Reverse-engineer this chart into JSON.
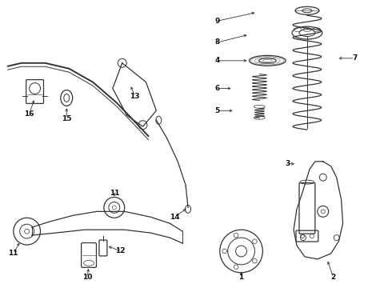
{
  "bg_color": "#ffffff",
  "line_color": "#333333",
  "label_color": "#111111",
  "fig_width": 4.9,
  "fig_height": 3.6,
  "dpi": 100
}
